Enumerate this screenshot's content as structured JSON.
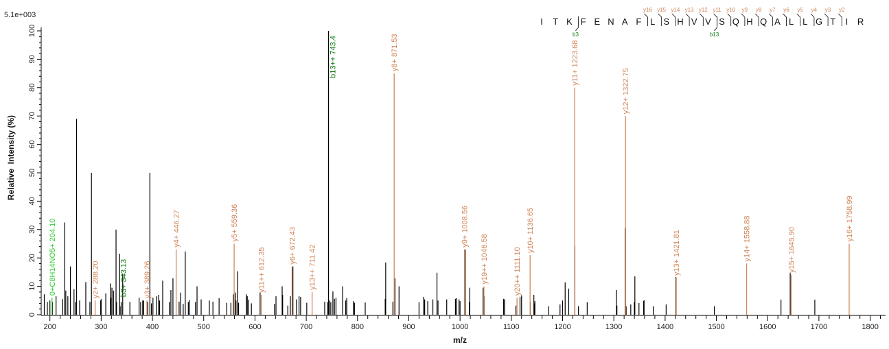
{
  "chart_data": {
    "type": "bar",
    "scale_label": "5.1e+003",
    "xlabel": "m/z",
    "ylabel": "Relative  Intensity (%)",
    "xlim": [
      183,
      1830
    ],
    "ylim": [
      0,
      100
    ],
    "xticks": [
      200,
      300,
      400,
      500,
      600,
      700,
      800,
      900,
      1000,
      1100,
      1200,
      1300,
      1400,
      1500,
      1600,
      1700,
      1800
    ],
    "yticks": [
      0,
      10,
      20,
      30,
      40,
      50,
      60,
      70,
      80,
      90,
      100
    ],
    "grid": false,
    "colors": {
      "y_ion": "#d2875a",
      "b_ion": "#0a7a0a",
      "other_ion": "#33cc33",
      "unassigned": "#000000",
      "b3_line": "#aaaaaa"
    },
    "sequence": [
      "I",
      "T",
      "K",
      "F",
      "E",
      "N",
      "A",
      "F",
      "L",
      "S",
      "H",
      "V",
      "V",
      "S",
      "Q",
      "H",
      "Q",
      "A",
      "L",
      "L",
      "G",
      "T",
      "I",
      "R"
    ],
    "y_ion_labels": [
      "y16",
      "y15",
      "y14",
      "y13",
      "y12",
      "y11",
      "y10",
      "y9",
      "y8",
      "y7",
      "y6",
      "y5",
      "y4",
      "y3",
      "y2"
    ],
    "b_ion_labels": [
      {
        "label": "b3",
        "after": 3
      },
      {
        "label": "b13",
        "after": 13
      }
    ],
    "annotated_peaks": [
      {
        "label": "0+C8H14NO5+ 204.10",
        "mz": 204.1,
        "intensity": 6,
        "type": "other"
      },
      {
        "label": "y2+ 288.20",
        "mz": 288.2,
        "intensity": 5,
        "type": "y"
      },
      {
        "label": "b3+ 343.13",
        "mz": 343.13,
        "intensity": 5.5,
        "type": "b3"
      },
      {
        "label": "y3+ 389.26",
        "mz": 389.26,
        "intensity": 5,
        "type": "y"
      },
      {
        "label": "y4+ 446.27",
        "mz": 446.27,
        "intensity": 23,
        "type": "y"
      },
      {
        "label": "y5+ 559.36",
        "mz": 559.36,
        "intensity": 25,
        "type": "y"
      },
      {
        "label": "y11++ 612.35",
        "mz": 612.35,
        "intensity": 7,
        "type": "y"
      },
      {
        "label": "y6+ 672.43",
        "mz": 672.43,
        "intensity": 17,
        "type": "y"
      },
      {
        "label": "y13++ 711.42",
        "mz": 711.42,
        "intensity": 8,
        "type": "y"
      },
      {
        "label": "b13++ 743.4",
        "mz": 743.4,
        "intensity": 100,
        "type": "b"
      },
      {
        "label": "y8+ 871.53",
        "mz": 871.53,
        "intensity": 85,
        "type": "y"
      },
      {
        "label": "y9+ 1008.56",
        "mz": 1008.56,
        "intensity": 23,
        "type": "y"
      },
      {
        "label": "y19++ 1046.58",
        "mz": 1046.58,
        "intensity": 10,
        "type": "y"
      },
      {
        "label": "y20++ 1111.10",
        "mz": 1111.1,
        "intensity": 6,
        "type": "y"
      },
      {
        "label": "y10+ 1136.65",
        "mz": 1136.65,
        "intensity": 21,
        "type": "y"
      },
      {
        "label": "y11+ 1223.68",
        "mz": 1223.68,
        "intensity": 80,
        "type": "y"
      },
      {
        "label": "y12+ 1322.75",
        "mz": 1322.75,
        "intensity": 70,
        "type": "y"
      },
      {
        "label": "y13+ 1421.81",
        "mz": 1421.81,
        "intensity": 13,
        "type": "y"
      },
      {
        "label": "y14+ 1558.88",
        "mz": 1558.88,
        "intensity": 18,
        "type": "y"
      },
      {
        "label": "y15+ 1645.90",
        "mz": 1645.9,
        "intensity": 14,
        "type": "y"
      },
      {
        "label": "y16+ 1758.99",
        "mz": 1758.99,
        "intensity": 25,
        "type": "y"
      }
    ],
    "unassigned_peaks": [
      [
        189,
        7.2
      ],
      [
        195,
        4.5
      ],
      [
        200,
        5
      ],
      [
        205,
        4.5
      ],
      [
        212,
        6.5
      ],
      [
        225,
        5.5
      ],
      [
        229,
        32.5
      ],
      [
        231,
        8.5
      ],
      [
        235,
        6.5
      ],
      [
        240,
        17
      ],
      [
        247,
        9
      ],
      [
        250,
        4.5
      ],
      [
        252,
        69
      ],
      [
        258,
        5
      ],
      [
        270,
        11.5
      ],
      [
        278,
        4.5
      ],
      [
        281,
        50
      ],
      [
        299,
        5
      ],
      [
        300,
        5.5
      ],
      [
        309,
        7.5
      ],
      [
        318,
        11
      ],
      [
        319,
        6
      ],
      [
        321,
        9.5
      ],
      [
        324,
        8.5
      ],
      [
        329,
        30
      ],
      [
        330,
        4.5
      ],
      [
        336,
        21.5
      ],
      [
        337,
        3
      ],
      [
        339,
        4.5
      ],
      [
        342,
        14.5
      ],
      [
        356,
        4.5
      ],
      [
        374,
        6
      ],
      [
        377,
        4.5
      ],
      [
        381,
        5
      ],
      [
        383,
        5
      ],
      [
        391,
        4.5
      ],
      [
        395,
        50
      ],
      [
        398,
        4
      ],
      [
        401,
        6
      ],
      [
        408,
        6.5
      ],
      [
        412,
        7
      ],
      [
        414,
        5
      ],
      [
        420,
        12
      ],
      [
        433,
        4.5
      ],
      [
        436,
        8.7
      ],
      [
        440,
        12.8
      ],
      [
        452,
        4.6
      ],
      [
        455,
        7.8
      ],
      [
        460,
        3.8
      ],
      [
        464,
        22.3
      ],
      [
        470,
        4.5
      ],
      [
        472,
        5.1
      ],
      [
        484,
        4.5
      ],
      [
        487,
        10
      ],
      [
        495,
        5.4
      ],
      [
        511,
        5
      ],
      [
        518,
        4.6
      ],
      [
        530,
        5.8
      ],
      [
        545,
        4.2
      ],
      [
        553,
        4.2
      ],
      [
        558,
        7.2
      ],
      [
        562,
        7.8
      ],
      [
        563,
        5
      ],
      [
        566,
        15.3
      ],
      [
        568,
        4.2
      ],
      [
        583,
        7.2
      ],
      [
        585,
        6.5
      ],
      [
        587,
        5.3
      ],
      [
        593,
        4
      ],
      [
        610,
        7.8
      ],
      [
        638,
        3.8
      ],
      [
        641,
        6.5
      ],
      [
        653,
        10
      ],
      [
        654,
        7
      ],
      [
        664,
        3.2
      ],
      [
        669,
        6.5
      ],
      [
        674,
        17
      ],
      [
        681,
        5.4
      ],
      [
        686,
        6.5
      ],
      [
        689,
        6.3
      ],
      [
        701,
        4.2
      ],
      [
        736,
        4.6
      ],
      [
        742,
        4.4
      ],
      [
        746,
        5
      ],
      [
        748,
        4.4
      ],
      [
        752,
        8.2
      ],
      [
        755,
        5.6
      ],
      [
        758,
        6
      ],
      [
        771,
        10
      ],
      [
        777,
        5
      ],
      [
        779,
        5.8
      ],
      [
        792,
        4.8
      ],
      [
        794,
        4.2
      ],
      [
        815,
        4.3
      ],
      [
        855,
        18.4
      ],
      [
        854,
        5.6
      ],
      [
        869,
        4.6
      ],
      [
        873,
        12.8
      ],
      [
        881,
        10
      ],
      [
        920,
        4.4
      ],
      [
        929,
        6.3
      ],
      [
        931,
        5.4
      ],
      [
        937,
        4.8
      ],
      [
        947,
        5.4
      ],
      [
        955,
        14.8
      ],
      [
        957,
        5
      ],
      [
        974,
        5.4
      ],
      [
        991,
        5.6
      ],
      [
        993,
        5.8
      ],
      [
        998,
        5.4
      ],
      [
        1000,
        4.8
      ],
      [
        1010,
        23
      ],
      [
        1018,
        4.4
      ],
      [
        1019,
        9.5
      ],
      [
        1045,
        9.5
      ],
      [
        1047,
        6.5
      ],
      [
        1085,
        5.6
      ],
      [
        1087,
        5.4
      ],
      [
        1109,
        3.2
      ],
      [
        1117,
        6.3
      ],
      [
        1120,
        6.8
      ],
      [
        1137,
        4.4
      ],
      [
        1144,
        7
      ],
      [
        1145,
        4
      ],
      [
        1146,
        4.8
      ],
      [
        1173,
        3
      ],
      [
        1195,
        3.6
      ],
      [
        1200,
        5
      ],
      [
        1205,
        11.4
      ],
      [
        1212,
        9.2
      ],
      [
        1224,
        24.2
      ],
      [
        1231,
        3
      ],
      [
        1248,
        4.4
      ],
      [
        1305,
        8.7
      ],
      [
        1306,
        3.2
      ],
      [
        1322,
        30.5
      ],
      [
        1324,
        3
      ],
      [
        1333,
        3.6
      ],
      [
        1340,
        4.4
      ],
      [
        1341,
        13.5
      ],
      [
        1349,
        4.1
      ],
      [
        1358,
        4.8
      ],
      [
        1359,
        5.1
      ],
      [
        1377,
        3
      ],
      [
        1402,
        3.6
      ],
      [
        1421,
        13.3
      ],
      [
        1496,
        3
      ],
      [
        1626,
        5.3
      ],
      [
        1644,
        14.7
      ],
      [
        1692,
        5.3
      ]
    ]
  }
}
